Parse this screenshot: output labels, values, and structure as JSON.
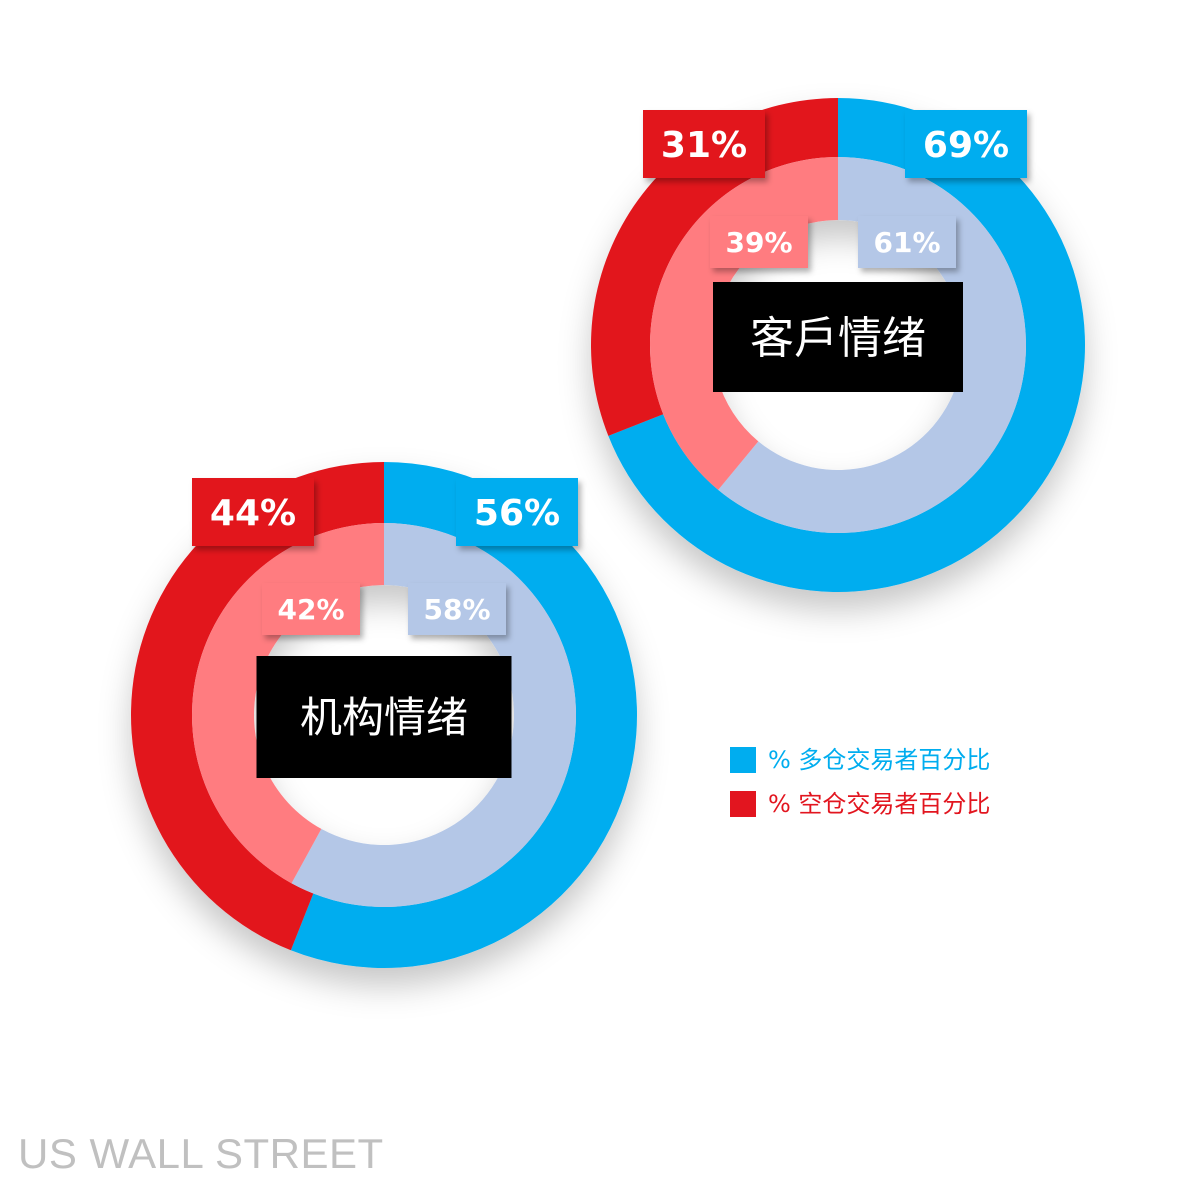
{
  "colors": {
    "long_outer": "#00adef",
    "long_inner": "#b4c7e7",
    "short_outer": "#e2151f",
    "short_inner": "#ff7c80",
    "center_box": "#000000"
  },
  "chart_data": [
    {
      "type": "pie",
      "subtype": "nested-donut",
      "title": "客戶情绪",
      "series": [
        {
          "name": "outer",
          "values": [
            69,
            31
          ],
          "labels": [
            "69%",
            "31%"
          ]
        },
        {
          "name": "inner",
          "values": [
            61,
            39
          ],
          "labels": [
            "61%",
            "39%"
          ]
        }
      ]
    },
    {
      "type": "pie",
      "subtype": "nested-donut",
      "title": "机构情绪",
      "series": [
        {
          "name": "outer",
          "values": [
            56,
            44
          ],
          "labels": [
            "56%",
            "44%"
          ]
        },
        {
          "name": "inner",
          "values": [
            58,
            42
          ],
          "labels": [
            "58%",
            "42%"
          ]
        }
      ]
    }
  ],
  "legend": {
    "items": [
      {
        "label": "% 多仓交易者百分比",
        "color": "#00adef"
      },
      {
        "label": "% 空仓交易者百分比",
        "color": "#e2151f"
      }
    ],
    "placement": "right"
  },
  "watermark": "US WALL STREET"
}
